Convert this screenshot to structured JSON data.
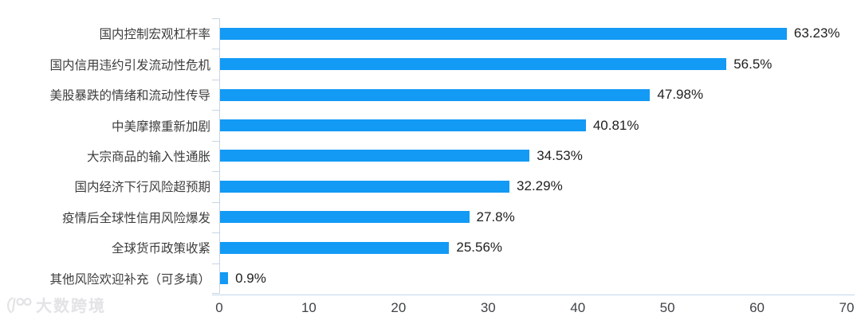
{
  "colors": {
    "bar": "#129af5",
    "axis_vertical": "#c9d5e2",
    "axis_horizontal": "#c2d6ea",
    "category_text": "#3d3d3d",
    "value_text": "#212121",
    "tick_text": "#404347",
    "watermark_text": "#e4e4e7"
  },
  "chart_data": {
    "type": "bar",
    "orientation": "horizontal",
    "title": "",
    "xlabel": "",
    "ylabel": "",
    "categories": [
      "国内控制宏观杠杆率",
      "国内信用违约引发流动性危机",
      "美股暴跌的情绪和流动性传导",
      "中美摩擦重新加剧",
      "大宗商品的输入性通胀",
      "国内经济下行风险超预期",
      "疫情后全球性信用风险爆发",
      "全球货币政策收紧",
      "其他风险欢迎补充（可多填）"
    ],
    "values": [
      63.23,
      56.5,
      47.98,
      40.81,
      34.53,
      32.29,
      27.8,
      25.56,
      0.9
    ],
    "value_labels": [
      "63.23%",
      "56.5%",
      "47.98%",
      "40.81%",
      "34.53%",
      "32.29%",
      "27.8%",
      "25.56%",
      "0.9%"
    ],
    "xlim": [
      0,
      70
    ],
    "x_ticks": [
      0,
      10,
      20,
      30,
      40,
      50,
      60,
      70
    ],
    "grid": false,
    "legend": "none",
    "data_labels": true
  },
  "watermark": {
    "text": "大数跨境",
    "logo": "100-swoosh-logo"
  }
}
